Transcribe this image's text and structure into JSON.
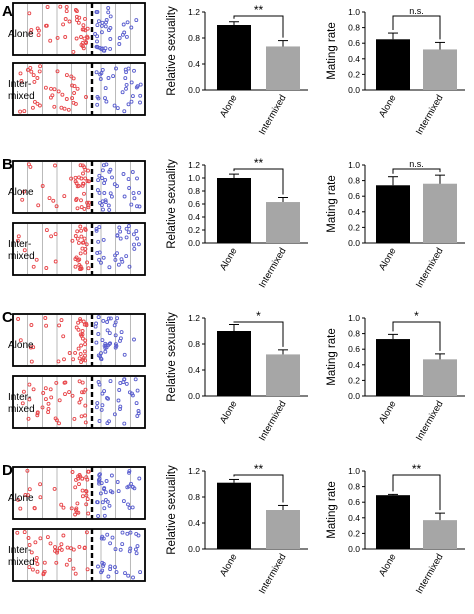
{
  "figure": {
    "colors": {
      "alone_bar": "#000000",
      "intermixed_bar": "#a6a6a6",
      "red_dot": "#e8474b",
      "blue_dot": "#5b5fcf",
      "lane_line": "#9a9a9a"
    }
  },
  "panels": [
    {
      "letter": "A",
      "well_labels": [
        "Alone",
        "Inter-\nmixed"
      ],
      "chart_data": [
        {
          "type": "bar",
          "categories": [
            "Alone",
            "Intermixed"
          ],
          "values": [
            1.0,
            0.67
          ],
          "errors": [
            0.05,
            0.09
          ],
          "ylabel": "Relative sexuality",
          "ylim": [
            0,
            1.2
          ],
          "yticks": [
            "0.0",
            "0.4",
            "0.8",
            "1.2"
          ],
          "significance": "**"
        },
        {
          "type": "bar",
          "categories": [
            "Alone",
            "Intermixed"
          ],
          "values": [
            0.65,
            0.52
          ],
          "errors": [
            0.08,
            0.09
          ],
          "ylabel": "Mating rate",
          "ylim": [
            0,
            1.0
          ],
          "yticks": [
            "0.0",
            "0.2",
            "0.4",
            "0.6",
            "0.8",
            "1.0"
          ],
          "significance": "n.s."
        }
      ]
    },
    {
      "letter": "B",
      "well_labels": [
        "Alone",
        "Inter-\nmixed"
      ],
      "chart_data": [
        {
          "type": "bar",
          "categories": [
            "Alone",
            "Intermixed"
          ],
          "values": [
            1.0,
            0.63
          ],
          "errors": [
            0.06,
            0.07
          ],
          "ylabel": "Relative sexuality",
          "ylim": [
            0,
            1.2
          ],
          "yticks": [
            "0.0",
            "0.2",
            "0.4",
            "0.6",
            "0.8",
            "1.0",
            "1.2"
          ],
          "significance": "**"
        },
        {
          "type": "bar",
          "categories": [
            "Alone",
            "Intermixed"
          ],
          "values": [
            0.74,
            0.76
          ],
          "errors": [
            0.11,
            0.11
          ],
          "ylabel": "Mating rate",
          "ylim": [
            0,
            1.0
          ],
          "yticks": [
            "0.0",
            "0.2",
            "0.4",
            "0.6",
            "0.8",
            "1.0"
          ],
          "significance": "n.s."
        }
      ]
    },
    {
      "letter": "C",
      "well_labels": [
        "Alone",
        "Inter-\nmixed"
      ],
      "chart_data": [
        {
          "type": "bar",
          "categories": [
            "Alone",
            "Intermixed"
          ],
          "values": [
            1.0,
            0.64
          ],
          "errors": [
            0.1,
            0.07
          ],
          "ylabel": "Relative sexuality",
          "ylim": [
            0,
            1.2
          ],
          "yticks": [
            "0.0",
            "0.4",
            "0.8",
            "1.2"
          ],
          "significance": "*"
        },
        {
          "type": "bar",
          "categories": [
            "Alone",
            "Intermixed"
          ],
          "values": [
            0.73,
            0.47
          ],
          "errors": [
            0.06,
            0.07
          ],
          "ylabel": "Mating rate",
          "ylim": [
            0,
            1.0
          ],
          "yticks": [
            "0.0",
            "0.2",
            "0.4",
            "0.6",
            "0.8",
            "1.0"
          ],
          "significance": "*"
        }
      ]
    },
    {
      "letter": "D",
      "well_labels": [
        "Alone",
        "Inter-\nmixed"
      ],
      "chart_data": [
        {
          "type": "bar",
          "categories": [
            "Alone",
            "Intermixed"
          ],
          "values": [
            1.02,
            0.6
          ],
          "errors": [
            0.05,
            0.07
          ],
          "ylabel": "Relative sexuality",
          "ylim": [
            0,
            1.2
          ],
          "yticks": [
            "0.0",
            "0.4",
            "0.8",
            "1.2"
          ],
          "significance": "**"
        },
        {
          "type": "bar",
          "categories": [
            "Alone",
            "Intermixed"
          ],
          "values": [
            0.69,
            0.37
          ],
          "errors": [
            0.01,
            0.09
          ],
          "ylabel": "Mating rate",
          "ylim": [
            0,
            1.0
          ],
          "yticks": [
            "0.0",
            "0.2",
            "0.4",
            "0.6",
            "0.8",
            "1.0"
          ],
          "significance": "**"
        }
      ]
    }
  ]
}
